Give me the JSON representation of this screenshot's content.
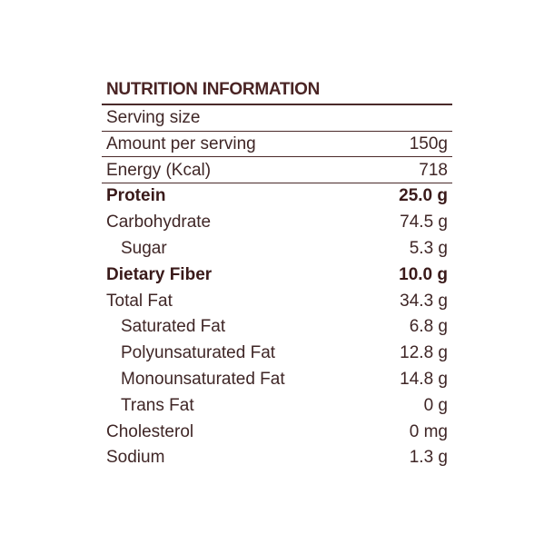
{
  "header": {
    "title": "NUTRITION INFORMATION"
  },
  "table": {
    "rows": [
      {
        "label": "Serving size"
      },
      {
        "label": "Amount per serving",
        "value": "150g"
      },
      {
        "label": "Energy (Kcal)",
        "value": "718"
      },
      {
        "label": "Protein",
        "value": "25.0 g",
        "bold": true
      },
      {
        "label": "Carbohydrate",
        "value": "74.5 g"
      },
      {
        "label": "Sugar",
        "value": "5.3 g",
        "indent": true
      },
      {
        "label": "Dietary Fiber",
        "value": "10.0 g",
        "bold": true
      },
      {
        "label": "Total Fat",
        "value": "34.3 g"
      },
      {
        "label": "Saturated Fat",
        "value": "6.8 g",
        "indent": true
      },
      {
        "label": "Polyunsaturated Fat",
        "value": "12.8 g",
        "indent": true
      },
      {
        "label": "Monounsaturated Fat",
        "value": "14.8 g",
        "indent": true
      },
      {
        "label": "Trans Fat",
        "value": "0 g",
        "indent": true
      },
      {
        "label": "Cholesterol",
        "value": "0 mg"
      },
      {
        "label": "Sodium",
        "value": "1.3 g"
      }
    ]
  }
}
